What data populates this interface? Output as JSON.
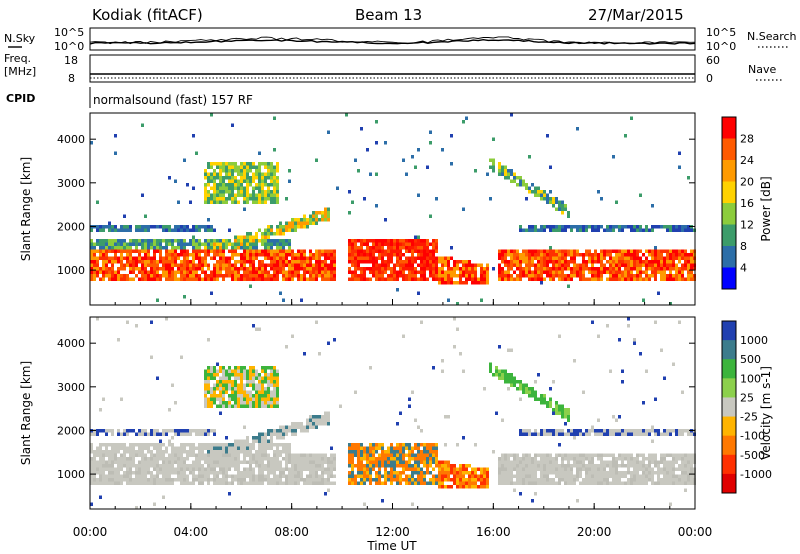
{
  "header": {
    "station": "Kodiak (fitACF)",
    "beam": "Beam 13",
    "date": "27/Mar/2015"
  },
  "summary_panels": {
    "nsky_label": "N.Sky",
    "nsky_ticks": [
      "10^5",
      "10^0"
    ],
    "nsearch_label": "N.Search",
    "nsearch_ticks": [
      "10^5",
      "10^0"
    ],
    "freq_label_1": "Freq.",
    "freq_label_2": "[MHz]",
    "freq_ticks": [
      "18",
      "8"
    ],
    "nave_label": "Nave",
    "nave_ticks": [
      "60",
      "0"
    ],
    "cpid_label": "CPID",
    "cpid_value": "normalsound (fast) 157 RF"
  },
  "chart_data": [
    {
      "type": "heatmap",
      "panel": "power",
      "ylabel": "Slant Range [km]",
      "y_ticks": [
        1000,
        2000,
        3000,
        4000
      ],
      "ylim": [
        200,
        4600
      ],
      "xlim_hours": [
        0,
        24
      ],
      "colorbar_label": "Power [dB]",
      "colorbar_ticks": [
        "28",
        "24",
        "20",
        "16",
        "12",
        "8",
        "4"
      ],
      "colorbar_colors": [
        "#ff0000",
        "#ff5a00",
        "#ff9a00",
        "#ffd200",
        "#8ccc3c",
        "#3c9c6a",
        "#2c6ea8",
        "#0000ff"
      ]
    },
    {
      "type": "heatmap",
      "panel": "velocity",
      "ylabel": "Slant Range [km]",
      "y_ticks": [
        1000,
        2000,
        3000,
        4000
      ],
      "ylim": [
        200,
        4600
      ],
      "xlim_hours": [
        0,
        24
      ],
      "colorbar_label": "Velocity [m s-1]",
      "colorbar_ticks": [
        "1000",
        "500",
        "100",
        "25",
        "-25",
        "-100",
        "-500",
        "-1000"
      ],
      "colorbar_colors": [
        "#2040b0",
        "#3c7c8c",
        "#3cb43c",
        "#8cd04c",
        "#c8c8c0",
        "#ffb400",
        "#ff7800",
        "#ff3000",
        "#e00000"
      ]
    }
  ],
  "x_axis": {
    "ticks": [
      "00:00",
      "04:00",
      "08:00",
      "12:00",
      "16:00",
      "20:00",
      "00:00"
    ],
    "label": "Time UT"
  }
}
